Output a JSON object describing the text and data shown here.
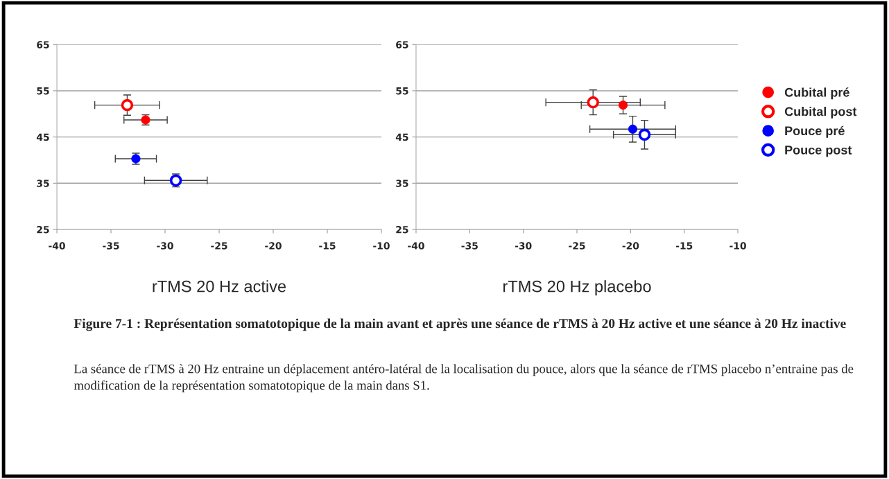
{
  "chart_data": [
    {
      "type": "scatter",
      "xlabel": "rTMS 20 Hz active",
      "xlim": [
        -40,
        -10
      ],
      "xticks": [
        -40,
        -35,
        -30,
        -25,
        -20,
        -15,
        -10
      ],
      "ylim": [
        25,
        65
      ],
      "yticks": [
        25,
        35,
        45,
        55,
        65
      ],
      "grid": "y",
      "marker": "circle",
      "series": [
        {
          "color": "#ff0000",
          "x": [
            -31.8
          ],
          "values": [
            48.7
          ],
          "errors": [
            1.1
          ],
          "xerrors": [
            2.0
          ]
        },
        {
          "color": "#ff0000",
          "x": [
            -33.5
          ],
          "values": [
            51.9
          ],
          "errors": [
            2.2
          ],
          "xerrors": [
            3.0
          ]
        },
        {
          "color": "#0000ff",
          "x": [
            -32.7
          ],
          "values": [
            40.3
          ],
          "errors": [
            1.2
          ],
          "xerrors": [
            1.9
          ]
        },
        {
          "color": "#0000ff",
          "x": [
            -29.0
          ],
          "values": [
            35.6
          ],
          "errors": [
            1.4
          ],
          "xerrors": [
            2.9
          ]
        }
      ]
    },
    {
      "type": "scatter",
      "xlabel": "rTMS 20 Hz placebo",
      "xlim": [
        -40,
        -10
      ],
      "xticks": [
        -40,
        -35,
        -30,
        -25,
        -20,
        -15,
        -10
      ],
      "ylim": [
        25,
        65
      ],
      "yticks": [
        25,
        35,
        45,
        55,
        65
      ],
      "grid": "y",
      "legend": "right",
      "marker": "circle",
      "series": [
        {
          "name": "Cubital pré",
          "color": "#ff0000",
          "x": [
            -20.7
          ],
          "values": [
            51.9
          ],
          "errors": [
            1.9
          ],
          "xerrors": [
            3.9
          ]
        },
        {
          "name": "Cubital post",
          "color": "#ff0000",
          "x": [
            -23.5
          ],
          "values": [
            52.5
          ],
          "errors": [
            2.7
          ],
          "xerrors": [
            4.4
          ]
        },
        {
          "name": "Pouce pré",
          "color": "#0000ff",
          "x": [
            -19.8
          ],
          "values": [
            46.7
          ],
          "errors": [
            2.8
          ],
          "xerrors": [
            4.0
          ]
        },
        {
          "name": "Pouce post",
          "color": "#0000ff",
          "x": [
            -18.7
          ],
          "values": [
            45.5
          ],
          "errors": [
            3.1
          ],
          "xerrors": [
            2.9
          ]
        }
      ],
      "annotations": [
        "Figure 7-1 : Représentation somatotopique de la main avant et après une séance de rTMS à 20 Hz active et une séance à 20 Hz inactive",
        "La séance de rTMS à 20 Hz entraine un déplacement antéro-latéral de la localisation du pouce, alors que la séance de rTMS placebo n’entraine pas de modification de la représentation somatotopique de la main dans S1."
      ]
    }
  ]
}
